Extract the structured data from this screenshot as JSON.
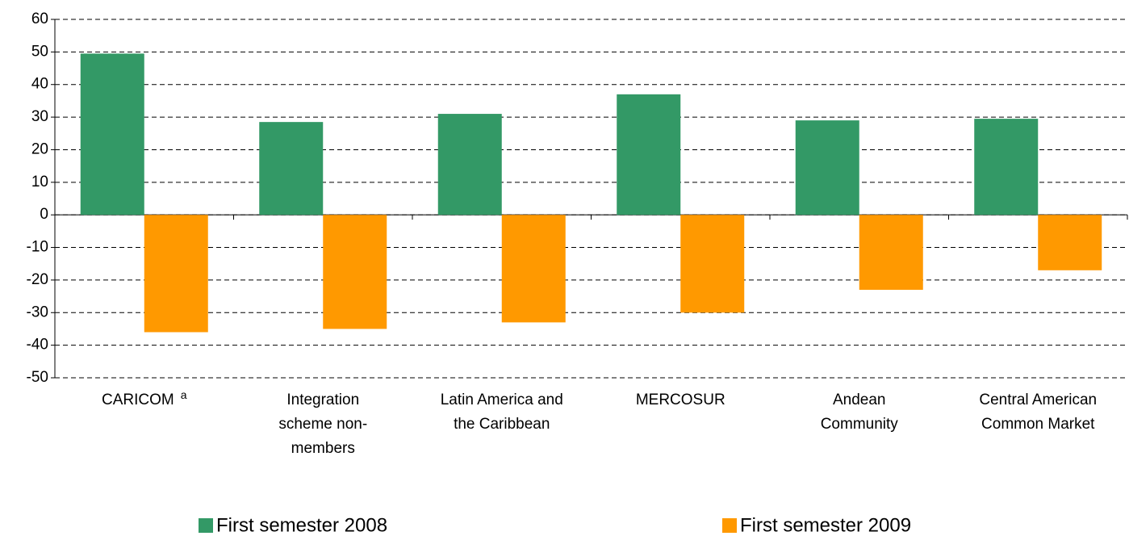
{
  "chart_data": {
    "type": "bar",
    "categories": [
      [
        "CARICOM"
      ],
      [
        "Integration",
        "scheme non-",
        "members"
      ],
      [
        "Latin America and",
        "the Caribbean"
      ],
      [
        "MERCOSUR"
      ],
      [
        "Andean",
        "Community"
      ],
      [
        "Central American",
        "Common Market"
      ]
    ],
    "category_superscripts": [
      "a",
      null,
      null,
      null,
      null,
      null
    ],
    "series": [
      {
        "name": "First semester 2008",
        "color": "#339966",
        "values": [
          49.5,
          28.5,
          31,
          37,
          29,
          29.5
        ]
      },
      {
        "name": "First semester 2009",
        "color": "#ff9900",
        "values": [
          -36,
          -35,
          -33,
          -30,
          -23,
          -17
        ]
      }
    ],
    "ylim": [
      -50,
      60
    ],
    "yticks": [
      -50,
      -40,
      -30,
      -20,
      -10,
      0,
      10,
      20,
      30,
      40,
      50,
      60
    ],
    "grid": true
  }
}
